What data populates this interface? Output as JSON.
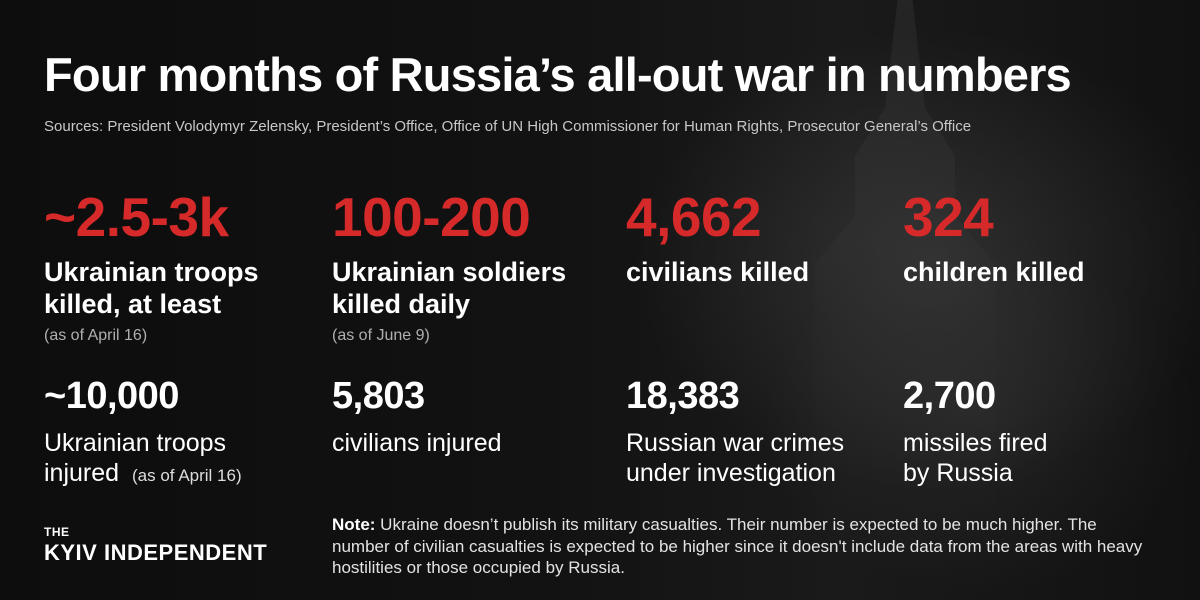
{
  "header": {
    "title": "Four months of Russia’s all-out war in numbers",
    "sources": "Sources: President Volodymyr Zelensky, President’s Office, Office of UN High Commissioner for Human Rights, Prosecutor General’s Office"
  },
  "stats_top": [
    {
      "value": "~2.5-3k",
      "label": "Ukrainian troops killed, at least",
      "note": "(as of April 16)"
    },
    {
      "value": "100-200",
      "label": "Ukrainian soldiers killed daily",
      "note": "(as of June 9)"
    },
    {
      "value": "4,662",
      "label": "civilians killed"
    },
    {
      "value": "324",
      "label": "children killed"
    }
  ],
  "stats_bottom": [
    {
      "value": "~10,000",
      "label_1": "Ukrainian troops",
      "label_2": "injured",
      "label_note": "(as of April 16)"
    },
    {
      "value": "5,803",
      "label": "civilians injured"
    },
    {
      "value": "18,383",
      "label": "Russian war crimes under investigation"
    },
    {
      "value": "2,700",
      "label": "missiles fired by Russia"
    }
  ],
  "brand": {
    "top": "THE",
    "main": "KYIV INDEPENDENT"
  },
  "note": {
    "prefix": "Note:",
    "text": " Ukraine doesn’t publish its military casualties. Their number is expected to be much higher. The number of civilian casualties is expected to be higher since it doesn't include data from the areas with heavy hostilities or those occupied by Russia."
  },
  "colors": {
    "accent_red": "#d62a2a",
    "text": "#ffffff",
    "background": "#101010"
  }
}
